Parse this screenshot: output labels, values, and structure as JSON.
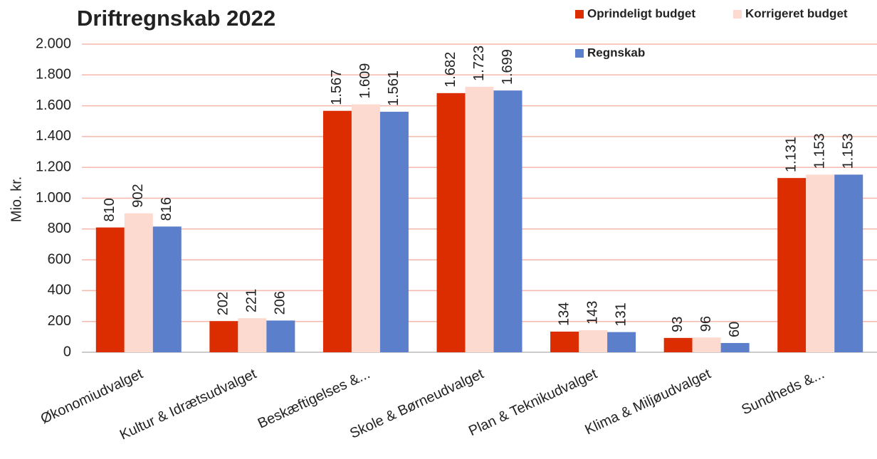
{
  "chart_data": {
    "type": "bar",
    "title": "Driftregnskab 2022",
    "y_label": "Mio. kr.",
    "categories": [
      "Økonomiudvalget",
      "Kultur & Idrætsudvalget",
      "Beskæftigelses &...",
      "Skole & Børneudvalget",
      "Plan & Teknikudvalget",
      "Klima & Miljøudvalget",
      "Sundheds &..."
    ],
    "series": [
      {
        "name": "Oprindeligt budget",
        "color": "#dc2d00",
        "values": [
          810,
          202,
          1567,
          1682,
          134,
          93,
          1131
        ],
        "value_labels": [
          "810",
          "202",
          "1.567",
          "1.682",
          "134",
          "93",
          "1.131"
        ]
      },
      {
        "name": "Korrigeret budget",
        "color": "#fddacf",
        "values": [
          902,
          221,
          1609,
          1723,
          143,
          96,
          1153
        ],
        "value_labels": [
          "902",
          "221",
          "1.609",
          "1.723",
          "143",
          "96",
          "1.153"
        ]
      },
      {
        "name": "Regnskab",
        "color": "#5b7fcb",
        "values": [
          816,
          206,
          1561,
          1699,
          131,
          60,
          1153
        ],
        "value_labels": [
          "816",
          "206",
          "1.561",
          "1.699",
          "131",
          "60",
          "1.153"
        ]
      }
    ],
    "ylim": [
      0,
      2000
    ],
    "yticks": [
      0,
      200,
      400,
      600,
      800,
      {
        "value": 1000,
        "label": "1.000"
      },
      {
        "value": 1200,
        "label": "1.200"
      },
      {
        "value": 1400,
        "label": "1.400"
      },
      {
        "value": 1600,
        "label": "1.600"
      },
      {
        "value": 1800,
        "label": "1.800"
      },
      {
        "value": 2000,
        "label": "2.000"
      }
    ],
    "grid": true,
    "legend": "top-right"
  }
}
